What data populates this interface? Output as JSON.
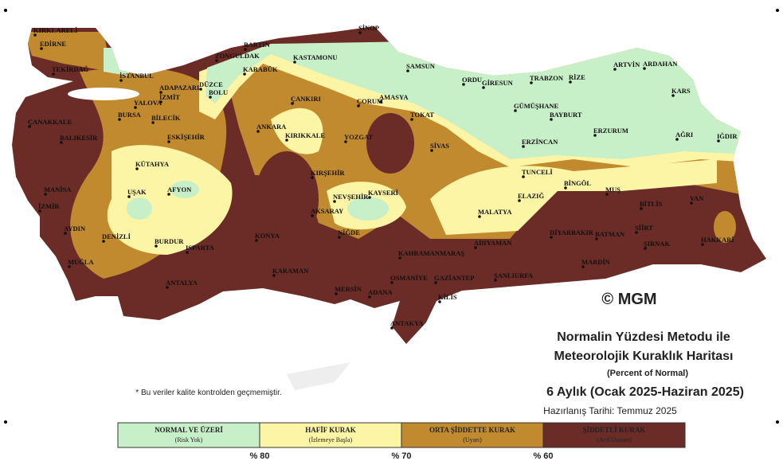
{
  "map_title": {
    "line1": "Normalin Yüzdesi Metodu ile",
    "line2": "Meteorolojik Kuraklık Haritası",
    "subtitle": "(Percent of Normal)",
    "period": "6 Aylık (Ocak 2025-Haziran 2025)",
    "prepared": "Hazırlanış Tarihi: Temmuz 2025"
  },
  "copyright": "© MGM",
  "note": "* Bu veriler kalite kontrolden geçmemiştir.",
  "legend": {
    "items": [
      {
        "label": "NORMAL VE ÜZERİ",
        "sublabel": "(Risk Yok)"
      },
      {
        "label": "HAFİF KURAK",
        "sublabel": "(İzlemeye Başla)"
      },
      {
        "label": "ORTA ŞİDDETTE KURAK",
        "sublabel": "(Uyarı)"
      },
      {
        "label": "ŞİDDETLİ KURAK",
        "sublabel": "(Acil Durum)"
      }
    ],
    "thresholds": [
      "% 80",
      "% 70",
      "% 60"
    ]
  },
  "cities": [
    "KIRKLARELİ",
    "EDİRNE",
    "TEKİRDAĞ",
    "İSTANBUL",
    "ADAPAZARI",
    "DÜZCE",
    "BOLU",
    "İZMİT",
    "YALOVA",
    "BURSA",
    "BİLECİK",
    "ÇANAKKALE",
    "BALIKESİR",
    "ESKİŞEHİR",
    "KÜTAHYA",
    "MANİSA",
    "UŞAK",
    "AFYON",
    "İZMİR",
    "AYDIN",
    "DENİZLİ",
    "BURDUR",
    "ISPARTA",
    "MUĞLA",
    "ANTALYA",
    "BARTIN",
    "ZONGULDAK",
    "KARABÜK",
    "KASTAMONU",
    "ÇANKIRI",
    "ANKARA",
    "KIRIKKALE",
    "ÇORUM",
    "AMASYA",
    "YOZGAT",
    "KIRŞEHİR",
    "NEVŞEHİR",
    "KAYSERİ",
    "AKSARAY",
    "NİĞDE",
    "KONYA",
    "KARAMAN",
    "MERSİN",
    "ADANA",
    "OSMANİYE",
    "GAZİANTEP",
    "KİLİS",
    "ANTAKYA",
    "KAHRAMANMARAŞ",
    "ADIYAMAN",
    "ŞANLIURFA",
    "MARDİN",
    "DİYARBAKIR",
    "BATMAN",
    "SİİRT",
    "ŞIRNAK",
    "HAKKARİ",
    "VAN",
    "BİTLİS",
    "MUŞ",
    "BİNGÖL",
    "ELAZIĞ",
    "MALATYA",
    "TUNCELİ",
    "ERZİNCAN",
    "ERZURUM",
    "AĞRI",
    "IĞDIR",
    "KARS",
    "ARDAHAN",
    "ARTVİN",
    "RİZE",
    "TRABZON",
    "GÜMÜŞHANE",
    "BAYBURT",
    "GİRESUN",
    "ORDU",
    "SAMSUN",
    "SİNOP",
    "TOKAT",
    "SİVAS"
  ]
}
